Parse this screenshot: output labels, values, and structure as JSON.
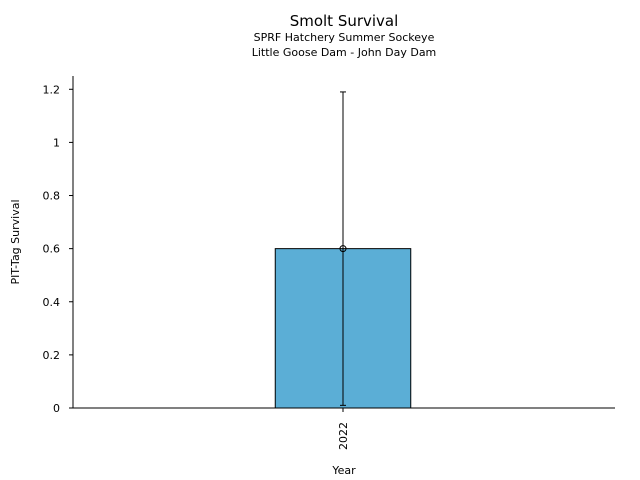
{
  "chart_data": {
    "type": "bar",
    "title": "Smolt Survival",
    "subtitle_lines": [
      "SPRF Hatchery Summer Sockeye",
      "Little Goose Dam - John Day Dam"
    ],
    "xlabel": "Year",
    "ylabel": "PIT-Tag Survival",
    "categories": [
      "2022"
    ],
    "values": [
      0.6
    ],
    "error_lower": [
      0.01
    ],
    "error_upper": [
      1.19
    ],
    "ylim": [
      0,
      1.25
    ],
    "yticks": [
      "0",
      "0.2",
      "0.4",
      "0.6",
      "0.8",
      "1",
      "1.2"
    ],
    "ytick_values": [
      0,
      0.2,
      0.4,
      0.6,
      0.8,
      1.0,
      1.2
    ],
    "bar_color": "#5BAED6",
    "grid": false
  }
}
